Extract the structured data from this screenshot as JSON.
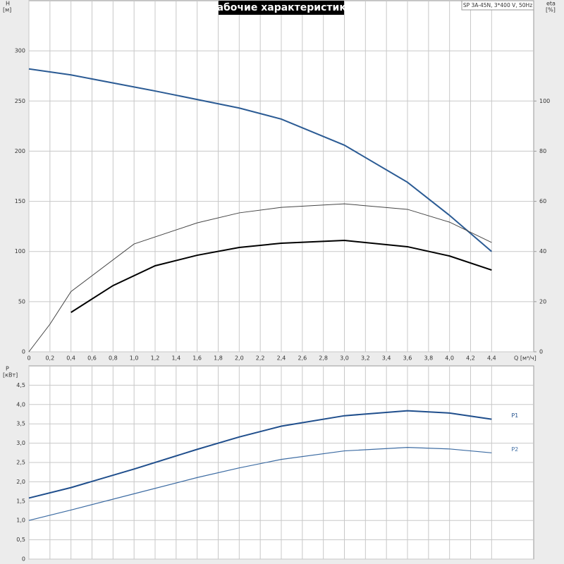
{
  "chart_data": [
    {
      "type": "line",
      "title": "Рабочие характеристики",
      "subtitle": "SP 3A-45N, 3*400 V, 50Hz",
      "xlabel": "Q [м³/ч]",
      "ylabel": "H",
      "ylabel_unit": "[м]",
      "y2label": "eta",
      "y2label_unit": "[%]",
      "xlim": [
        0,
        4.8
      ],
      "xticks": [
        0,
        {
          "value": 0.2,
          "label": "0,2"
        },
        {
          "value": 0.4,
          "label": "0,4"
        },
        {
          "value": 0.6,
          "label": "0,6"
        },
        {
          "value": 0.8,
          "label": "0,8"
        },
        {
          "value": 1.0,
          "label": "1,0"
        },
        {
          "value": 1.2,
          "label": "1,2"
        },
        {
          "value": 1.4,
          "label": "1,4"
        },
        {
          "value": 1.6,
          "label": "1,6"
        },
        {
          "value": 1.8,
          "label": "1,8"
        },
        {
          "value": 2.0,
          "label": "2,0"
        },
        {
          "value": 2.2,
          "label": "2,2"
        },
        {
          "value": 2.4,
          "label": "2,4"
        },
        {
          "value": 2.6,
          "label": "2,6"
        },
        {
          "value": 2.8,
          "label": "2,8"
        },
        {
          "value": 3.0,
          "label": "3,0"
        },
        {
          "value": 3.2,
          "label": "3,2"
        },
        {
          "value": 3.4,
          "label": "3,4"
        },
        {
          "value": 3.6,
          "label": "3,6"
        },
        {
          "value": 3.8,
          "label": "3,8"
        },
        {
          "value": 4.0,
          "label": "4,0"
        },
        {
          "value": 4.2,
          "label": "4,2"
        },
        {
          "value": 4.4,
          "label": "4,4"
        }
      ],
      "ylim": [
        0,
        350
      ],
      "yticks": [
        0,
        50,
        100,
        150,
        200,
        250,
        300
      ],
      "y2lim": [
        0,
        140
      ],
      "y2ticks": [
        0,
        20,
        40,
        60,
        80,
        100
      ],
      "grid": true,
      "series": [
        {
          "color": "#2b5b94",
          "x": [
            0,
            0.4,
            1.2,
            2.0,
            2.4,
            3.0,
            3.6,
            4.0,
            4.4
          ],
          "values": [
            282,
            276,
            260,
            243,
            232,
            206,
            169,
            136,
            100
          ]
        },
        {
          "color": "#444444",
          "axis": "y2",
          "x": [
            0,
            0.2,
            0.4,
            1.0,
            1.6,
            2.0,
            2.4,
            3.0,
            3.6,
            4.0,
            4.4
          ],
          "values": [
            0,
            11,
            24,
            43,
            51.4,
            55.4,
            57.6,
            59,
            56.8,
            51.7,
            43.6
          ]
        },
        {
          "color": "#000000",
          "axis": "y2",
          "x": [
            0.4,
            0.8,
            1.2,
            1.6,
            2.0,
            2.4,
            3.0,
            3.6,
            4.0,
            4.4
          ],
          "values": [
            15.7,
            26.4,
            34.3,
            38.5,
            41.6,
            43.3,
            44.4,
            41.9,
            38.2,
            32.6
          ]
        }
      ]
    },
    {
      "type": "line",
      "ylabel": "P",
      "ylabel_unit": "[кВт]",
      "xlim": [
        0,
        4.8
      ],
      "ylim": [
        0,
        5
      ],
      "yticks": [
        0,
        {
          "value": 0.5,
          "label": "0,5"
        },
        {
          "value": 1.0,
          "label": "1,0"
        },
        {
          "value": 1.5,
          "label": "1,5"
        },
        {
          "value": 2.0,
          "label": "2,0"
        },
        {
          "value": 2.5,
          "label": "2,5"
        },
        {
          "value": 3.0,
          "label": "3,0"
        },
        {
          "value": 3.5,
          "label": "3,5"
        },
        {
          "value": 4.0,
          "label": "4,0"
        },
        {
          "value": 4.5,
          "label": "4,5"
        }
      ],
      "grid": true,
      "series": [
        {
          "name": "P1",
          "color": "#1f4e8c",
          "x": [
            0,
            0.4,
            1.0,
            1.6,
            2.0,
            2.4,
            3.0,
            3.6,
            4.0,
            4.4
          ],
          "values": [
            1.58,
            1.85,
            2.33,
            2.84,
            3.16,
            3.44,
            3.71,
            3.84,
            3.78,
            3.62
          ]
        },
        {
          "name": "P2",
          "color": "#3d6ca3",
          "x": [
            0,
            0.4,
            1.0,
            1.6,
            2.0,
            2.4,
            3.0,
            3.6,
            4.0,
            4.4
          ],
          "values": [
            1.0,
            1.27,
            1.69,
            2.11,
            2.36,
            2.58,
            2.8,
            2.89,
            2.85,
            2.75
          ]
        }
      ]
    }
  ]
}
